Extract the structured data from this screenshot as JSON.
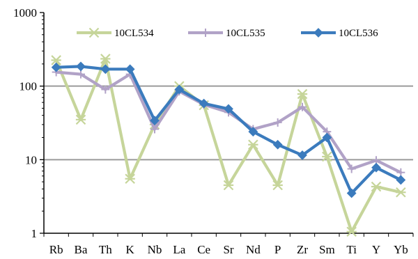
{
  "chart_data": {
    "type": "line",
    "title": "",
    "xlabel": "",
    "ylabel": "",
    "yscale": "log",
    "ylim": [
      1,
      1000
    ],
    "y_ticks": [
      "1",
      "10",
      "100",
      "1000"
    ],
    "grid": "horizontal",
    "legend_position": "top",
    "categories": [
      "Rb",
      "Ba",
      "Th",
      "K",
      "Nb",
      "La",
      "Ce",
      "Sr",
      "Nd",
      "P",
      "Zr",
      "Sm",
      "Ti",
      "Y",
      "Yb"
    ],
    "series": [
      {
        "name": "10CL534",
        "color": "#c6d59a",
        "marker": "asterisk",
        "values": [
          225,
          35,
          235,
          5.5,
          30,
          100,
          55,
          4.5,
          16,
          4.5,
          78,
          11,
          1.05,
          4.3,
          3.6
        ]
      },
      {
        "name": "10CL535",
        "color": "#b1a2c7",
        "marker": "plus",
        "values": [
          155,
          145,
          90,
          145,
          26,
          85,
          56,
          44,
          26,
          32,
          52,
          24,
          7.5,
          9.8,
          6.7
        ]
      },
      {
        "name": "10CL536",
        "color": "#3b7bbd",
        "marker": "diamond",
        "values": [
          180,
          185,
          170,
          170,
          34,
          90,
          58,
          49,
          24,
          16,
          11.5,
          20,
          3.5,
          7.8,
          5.3
        ]
      }
    ]
  }
}
